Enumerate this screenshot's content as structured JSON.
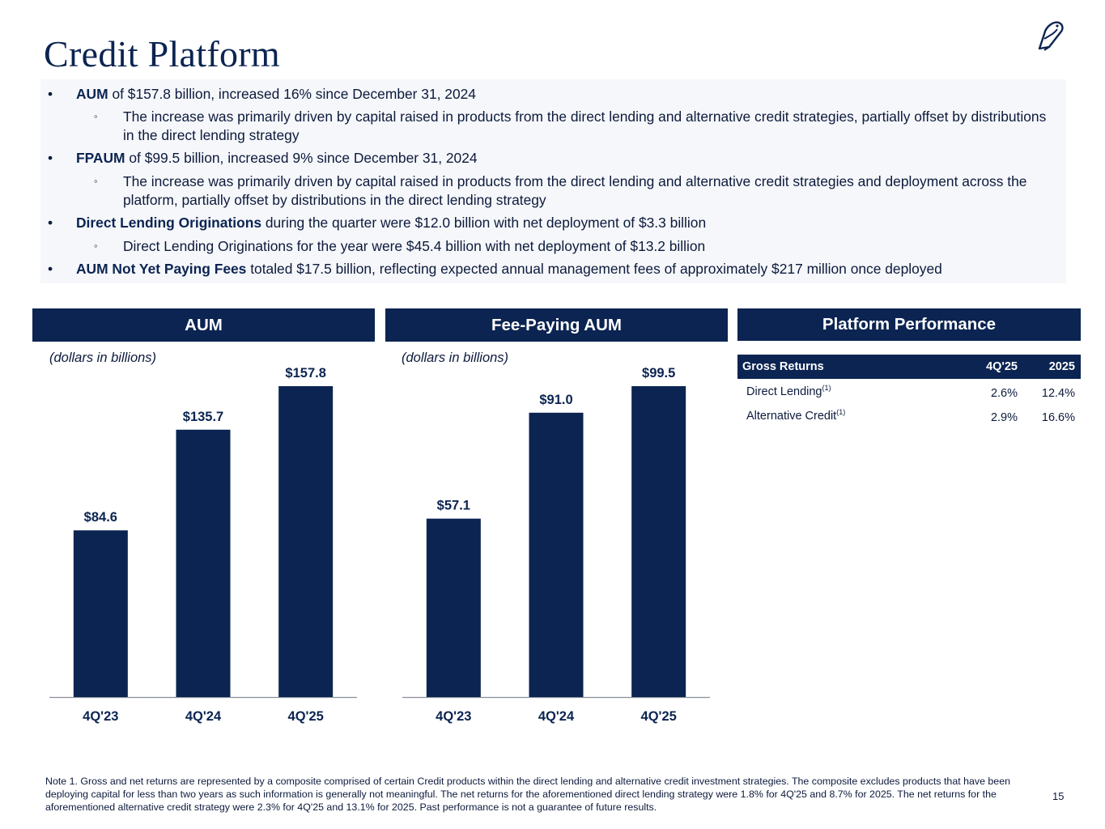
{
  "page": {
    "title": "Credit Platform",
    "page_number": "15"
  },
  "bullets": [
    {
      "level": 1,
      "bold": "AUM",
      "text": " of $157.8 billion, increased 16% since December 31, 2024"
    },
    {
      "level": 2,
      "bold": "",
      "text": "The increase was primarily driven by capital raised in products from the direct lending and alternative credit strategies, partially offset by distributions in the direct lending strategy"
    },
    {
      "level": 1,
      "bold": "FPAUM",
      "text": " of $99.5 billion, increased 9% since December 31, 2024"
    },
    {
      "level": 2,
      "bold": "",
      "text": "The increase was primarily driven by capital raised in products from the direct lending and alternative credit strategies and deployment across the platform, partially offset by distributions in the direct lending strategy"
    },
    {
      "level": 1,
      "bold": "Direct Lending Originations",
      "text": " during the quarter were $12.0 billion with net deployment of $3.3 billion"
    },
    {
      "level": 2,
      "bold": "",
      "text": "Direct Lending Originations for the year were $45.4 billion with net deployment of $13.2 billion"
    },
    {
      "level": 1,
      "bold": "AUM Not Yet Paying Fees",
      "text": " totaled $17.5 billion, reflecting expected annual management fees of approximately $217 million once deployed"
    }
  ],
  "bullet_markers": {
    "level1": "•",
    "level2": "◦"
  },
  "sections": {
    "aum_header": "AUM",
    "fpaum_header": "Fee-Paying AUM",
    "platform_header": "Platform Performance",
    "units_label": "(dollars in billions)"
  },
  "chart_data": [
    {
      "type": "bar",
      "title": "AUM",
      "subtitle": "(dollars in billions)",
      "categories": [
        "4Q'23",
        "4Q'24",
        "4Q'25"
      ],
      "values": [
        84.6,
        135.7,
        157.8
      ],
      "labels": [
        "$84.6",
        "$135.7",
        "$157.8"
      ],
      "ylim": [
        0,
        157.8
      ],
      "color": "#0b2452"
    },
    {
      "type": "bar",
      "title": "Fee-Paying AUM",
      "subtitle": "(dollars in billions)",
      "categories": [
        "4Q'23",
        "4Q'24",
        "4Q'25"
      ],
      "values": [
        57.1,
        91.0,
        99.5
      ],
      "labels": [
        "$57.1",
        "$91.0",
        "$99.5"
      ],
      "ylim": [
        0,
        99.5
      ],
      "color": "#0b2452"
    }
  ],
  "performance": {
    "headers": {
      "label": "Gross Returns",
      "q": "4Q'25",
      "y": "2025"
    },
    "rows": [
      {
        "label": "Direct Lending",
        "sup": "(1)",
        "q": "2.6%",
        "y": "12.4%"
      },
      {
        "label": "Alternative Credit",
        "sup": "(1)",
        "q": "2.9%",
        "y": "16.6%"
      }
    ]
  },
  "note": "Note 1. Gross and net returns are represented by a composite comprised of certain Credit products within the direct lending and alternative credit investment strategies. The composite excludes products that have been deploying capital for less than two years as such information is generally not meaningful. The net returns for the aforementioned direct lending strategy were 1.8% for 4Q'25 and 8.7% for 2025. The net returns for the aforementioned alternative credit strategy were 2.3% for 4Q'25 and 13.1% for 2025. Past performance is not a guarantee of future results.",
  "colors": {
    "navy": "#0b2452",
    "panel": "#f6f7fa"
  }
}
